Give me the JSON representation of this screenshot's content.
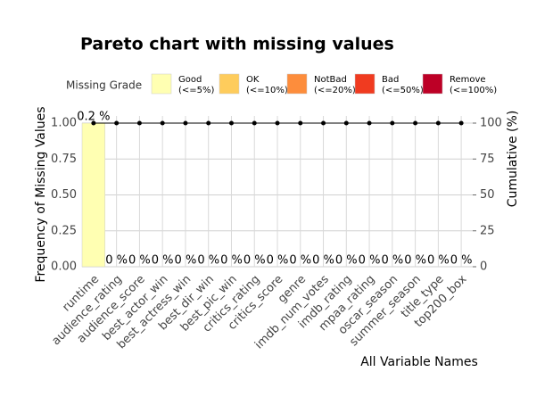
{
  "chart_data": {
    "type": "pareto",
    "title": "Pareto chart with missing values",
    "xlabel": "All Variable Names",
    "ylabel": "Frequency of Missing Values",
    "y2label": "Cumulative (%)",
    "categories": [
      "runtime",
      "audience_rating",
      "audience_score",
      "best_actor_win",
      "best_actress_win",
      "best_dir_win",
      "best_pic_win",
      "critics_rating",
      "critics_score",
      "genre",
      "imdb_num_votes",
      "imdb_rating",
      "mpaa_rating",
      "oscar_season",
      "summer_season",
      "title_type",
      "top200_box"
    ],
    "bars": {
      "color": "#ffffb2",
      "values": [
        1,
        0,
        0,
        0,
        0,
        0,
        0,
        0,
        0,
        0,
        0,
        0,
        0,
        0,
        0,
        0,
        0
      ]
    },
    "percent": {
      "values": [
        0.2,
        0,
        0,
        0,
        0,
        0,
        0,
        0,
        0,
        0,
        0,
        0,
        0,
        0,
        0,
        0,
        0
      ],
      "value_labels": [
        "0.2 %",
        "0 %",
        "0 %",
        "0 %",
        "0 %",
        "0 %",
        "0 %",
        "0 %",
        "0 %",
        "0 %",
        "0 %",
        "0 %",
        "0 %",
        "0 %",
        "0 %",
        "0 %",
        "0 %"
      ]
    },
    "cumulative": {
      "axis": "y2",
      "color": "#000000",
      "values": [
        100,
        100,
        100,
        100,
        100,
        100,
        100,
        100,
        100,
        100,
        100,
        100,
        100,
        100,
        100,
        100,
        100
      ]
    },
    "ylim": [
      0,
      1
    ],
    "yticks": [
      {
        "value": 0,
        "label": "0.00"
      },
      {
        "value": 0.25,
        "label": "0.25"
      },
      {
        "value": 0.5,
        "label": "0.50"
      },
      {
        "value": 0.75,
        "label": "0.75"
      },
      {
        "value": 1,
        "label": "1.00"
      }
    ],
    "y2lim": [
      0,
      100
    ],
    "y2ticks": [
      0,
      25,
      50,
      75,
      100
    ],
    "grid": true,
    "legend": {
      "title": "Missing Grade",
      "items": [
        {
          "label": [
            "Good",
            "(<=5%)"
          ],
          "color": "#ffffb2"
        },
        {
          "label": [
            "OK",
            "(<=10%)"
          ],
          "color": "#fecc5c"
        },
        {
          "label": [
            "NotBad",
            "(<=20%)"
          ],
          "color": "#fd8d3c"
        },
        {
          "label": [
            "Bad",
            "(<=50%)"
          ],
          "color": "#f03b20"
        },
        {
          "label": [
            "Remove",
            "(<=100%)"
          ],
          "color": "#bd0026"
        }
      ]
    }
  }
}
